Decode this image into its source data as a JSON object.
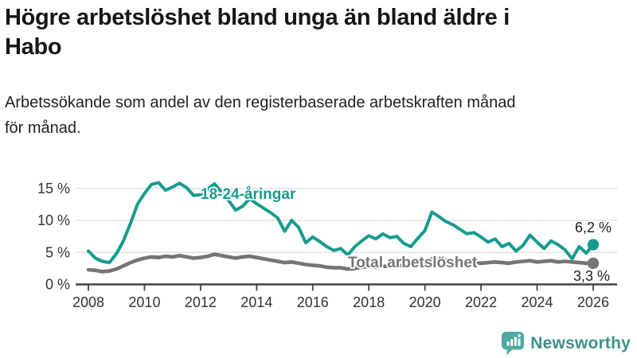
{
  "header": {
    "title_line1": "Högre arbetslöshet bland unga än bland äldre i",
    "title_line2": "Habo",
    "subtitle_line1": "Arbetssökande som andel av den registerbaserade arbetskraften månad",
    "subtitle_line2": "för månad."
  },
  "chart_data": {
    "type": "line",
    "title": "Högre arbetslöshet bland unga än bland äldre i Habo",
    "subtitle": "Arbetssökande som andel av den registerbaserade arbetskraften månad för månad.",
    "x_start": 2008,
    "x_step": 0.25,
    "x_end": 2026,
    "xticks": [
      2008,
      2010,
      2012,
      2014,
      2016,
      2018,
      2020,
      2022,
      2024,
      2026
    ],
    "xtick_labels": [
      "2008",
      "2010",
      "2012",
      "2014",
      "2016",
      "2018",
      "2020",
      "2022",
      "2024",
      "2026"
    ],
    "yticks": [
      0,
      5,
      10,
      15
    ],
    "ytick_labels": [
      "0 %",
      "5 %",
      "10 %",
      "15 %"
    ],
    "ylim": [
      0,
      17.5
    ],
    "grid": "horizontal",
    "legend_position": "inline-labels",
    "colors": {
      "youth": "#169c8c",
      "total": "#757575",
      "grid": "#dcdcdc",
      "axis": "#444444",
      "text": "#333333",
      "value_label": "#1f1f1f"
    },
    "series": [
      {
        "name": "18-24-åringar",
        "color": "#169c8c",
        "end_label": "6,2 %",
        "values": [
          5.2,
          4.1,
          3.6,
          3.4,
          4.8,
          6.8,
          9.5,
          12.5,
          14.2,
          15.6,
          15.9,
          14.7,
          15.2,
          15.8,
          15.1,
          13.9,
          14.0,
          14.9,
          15.7,
          14.4,
          13.1,
          11.6,
          12.2,
          13.4,
          12.6,
          11.9,
          11.2,
          10.4,
          8.3,
          10.0,
          8.9,
          6.5,
          7.4,
          6.7,
          5.9,
          5.3,
          5.6,
          4.6,
          5.9,
          6.8,
          7.6,
          7.1,
          7.9,
          7.3,
          7.5,
          6.4,
          5.9,
          7.2,
          8.4,
          11.3,
          10.6,
          9.8,
          9.3,
          8.6,
          7.9,
          8.1,
          7.4,
          6.6,
          7.1,
          5.9,
          6.4,
          5.2,
          6.1,
          7.7,
          6.6,
          5.6,
          6.8,
          6.2,
          5.4,
          4.0,
          5.9,
          4.9,
          6.2
        ]
      },
      {
        "name": "Total arbetslöshet",
        "color": "#757575",
        "end_label": "3,3 %",
        "values": [
          2.3,
          2.2,
          2.0,
          2.1,
          2.4,
          2.9,
          3.4,
          3.8,
          4.1,
          4.3,
          4.2,
          4.4,
          4.3,
          4.5,
          4.3,
          4.1,
          4.2,
          4.4,
          4.7,
          4.5,
          4.3,
          4.1,
          4.3,
          4.4,
          4.2,
          4.0,
          3.8,
          3.6,
          3.4,
          3.5,
          3.3,
          3.1,
          3.0,
          2.9,
          2.7,
          2.6,
          2.6,
          2.4,
          2.5,
          2.7,
          2.8,
          2.7,
          2.8,
          2.9,
          3.0,
          2.9,
          3.0,
          3.2,
          3.5,
          4.0,
          3.9,
          3.8,
          3.7,
          3.6,
          3.5,
          3.4,
          3.3,
          3.4,
          3.5,
          3.4,
          3.3,
          3.5,
          3.6,
          3.7,
          3.5,
          3.6,
          3.7,
          3.5,
          3.6,
          3.5,
          3.4,
          3.3,
          3.3
        ]
      }
    ]
  },
  "footer": {
    "brand": "Newsworthy",
    "brand_color": "#3e918b",
    "icon_color": "#4fa9a0",
    "icon": "speech-bubble-bar-chart-icon"
  }
}
